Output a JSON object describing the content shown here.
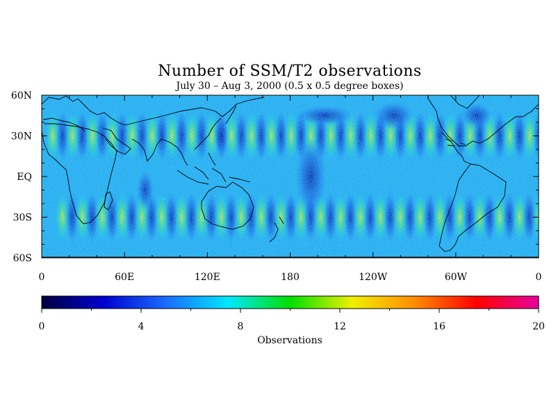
{
  "title": "Number of SSM/T2 observations",
  "subtitle": "July 30 – Aug 3, 2000 (0.5 x 0.5 degree boxes)",
  "map": {
    "projection": "equirectangular",
    "lon_range": [
      0,
      360
    ],
    "lat_range": [
      -60,
      60
    ],
    "lat_ticks": [
      {
        "value": 60,
        "label": "60N"
      },
      {
        "value": 30,
        "label": "30N"
      },
      {
        "value": 0,
        "label": "EQ"
      },
      {
        "value": -30,
        "label": "30S"
      },
      {
        "value": -60,
        "label": "60S"
      }
    ],
    "lon_ticks": [
      {
        "value": 0,
        "label": "0"
      },
      {
        "value": 60,
        "label": "60E"
      },
      {
        "value": 120,
        "label": "120E"
      },
      {
        "value": 180,
        "label": "180"
      },
      {
        "value": 240,
        "label": "120W"
      },
      {
        "value": 300,
        "label": "60W"
      },
      {
        "value": 360,
        "label": "0"
      }
    ],
    "field": "observation count per grid box",
    "pattern": "alternating high-count swath bands near 30N and 30S every ~30 degrees of longitude; low counts over deep Pacific swath gaps"
  },
  "colorbar": {
    "label": "Observations",
    "min": 0,
    "max": 20,
    "ticks": [
      {
        "value": 0,
        "label": "0"
      },
      {
        "value": 4,
        "label": "4"
      },
      {
        "value": 8,
        "label": "8"
      },
      {
        "value": 12,
        "label": "12"
      },
      {
        "value": 16,
        "label": "16"
      },
      {
        "value": 20,
        "label": "20"
      }
    ],
    "colors": [
      "#000040",
      "#0000d0",
      "#1a6cff",
      "#00e8ff",
      "#00e000",
      "#f0f000",
      "#ff8c00",
      "#ff0000",
      "#e8009c"
    ]
  }
}
